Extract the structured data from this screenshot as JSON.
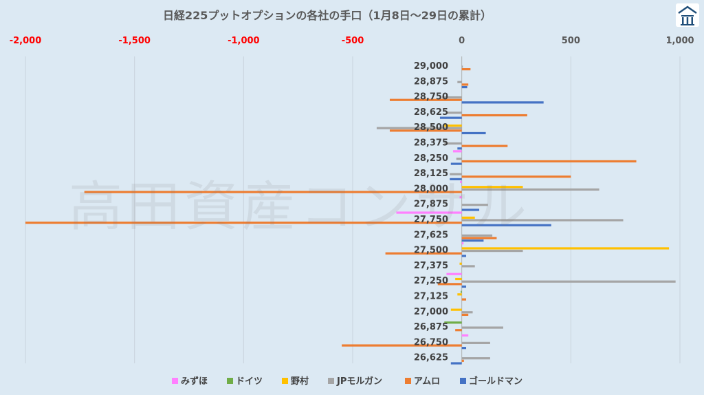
{
  "chart_data": {
    "type": "bar",
    "orientation": "horizontal",
    "title": "日経225プットオプションの各社の手口（1月8日～29日の累計）",
    "xlabel": "",
    "ylabel": "",
    "xlim": [
      -2000,
      1000
    ],
    "x_ticks": [
      {
        "value": -2000,
        "label": "-2,000"
      },
      {
        "value": -1500,
        "label": "-1,500"
      },
      {
        "value": -1000,
        "label": "-1,000"
      },
      {
        "value": -500,
        "label": "-500"
      },
      {
        "value": 0,
        "label": "0"
      },
      {
        "value": 500,
        "label": "500"
      },
      {
        "value": 1000,
        "label": "1,000"
      }
    ],
    "grid": true,
    "legend_position": "bottom",
    "categories": [
      "29,000",
      "28,875",
      "28,750",
      "28,625",
      "28,500",
      "28,375",
      "28,250",
      "28,125",
      "28,000",
      "27,875",
      "27,750",
      "27,625",
      "27,500",
      "27,375",
      "27,250",
      "27,125",
      "27,000",
      "26,875",
      "26,750",
      "26,625"
    ],
    "series": [
      {
        "name": "みずほ",
        "color": "#ff80ff",
        "values": [
          0,
          0,
          0,
          0,
          0,
          0,
          -40,
          0,
          -8,
          -10,
          -300,
          0,
          8,
          0,
          -70,
          0,
          0,
          0,
          30,
          0
        ]
      },
      {
        "name": "ドイツ",
        "color": "#70ad47",
        "values": [
          0,
          0,
          0,
          0,
          0,
          0,
          0,
          0,
          0,
          0,
          0,
          0,
          0,
          0,
          0,
          -5,
          0,
          -80,
          0,
          0
        ]
      },
      {
        "name": "野村",
        "color": "#ffc000",
        "values": [
          0,
          0,
          0,
          0,
          -80,
          0,
          0,
          0,
          280,
          0,
          60,
          0,
          950,
          -10,
          -30,
          -20,
          -50,
          0,
          0,
          0
        ]
      },
      {
        "name": "JPモルガン",
        "color": "#a5a5a5",
        "values": [
          5,
          -20,
          -90,
          -70,
          -390,
          -80,
          -25,
          -55,
          630,
          120,
          740,
          140,
          280,
          60,
          980,
          0,
          50,
          190,
          130,
          130
        ]
      },
      {
        "name": "アムロ",
        "color": "#ed7d31",
        "values": [
          40,
          30,
          -330,
          300,
          -330,
          210,
          800,
          500,
          -1730,
          0,
          -2000,
          160,
          -350,
          0,
          -110,
          20,
          30,
          -30,
          -550,
          10
        ]
      },
      {
        "name": "ゴールドマン",
        "color": "#4472c4",
        "values": [
          0,
          25,
          375,
          -100,
          110,
          -20,
          -50,
          -55,
          0,
          80,
          410,
          100,
          20,
          0,
          20,
          0,
          0,
          0,
          20,
          -50
        ]
      }
    ]
  },
  "watermark": "高田資産コンサル",
  "logo_icon": "house-logo-icon"
}
